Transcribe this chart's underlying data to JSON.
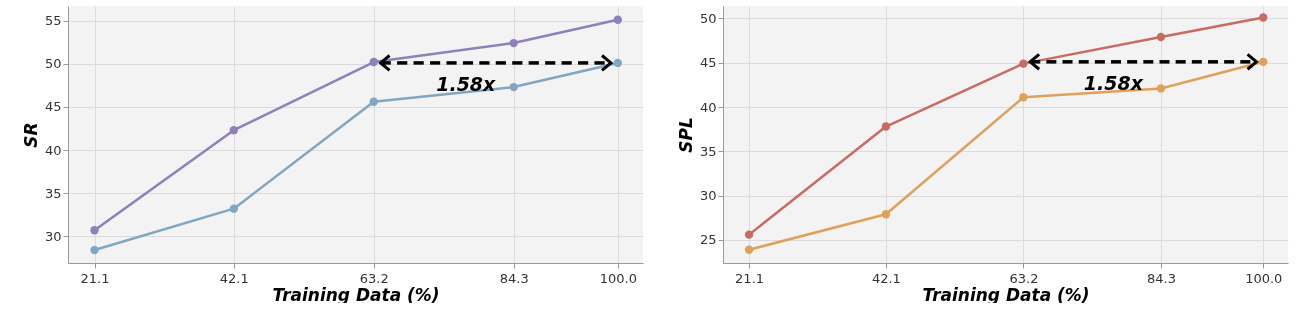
{
  "chart_data": [
    {
      "type": "line",
      "xlabel": "Training Data (%)",
      "ylabel": "SR",
      "x": [
        21.1,
        42.1,
        63.2,
        84.3,
        100.0
      ],
      "series": [
        {
          "color": "#8f7fba",
          "values": [
            30.7,
            42.3,
            50.2,
            52.4,
            55.1
          ]
        },
        {
          "color": "#80a6c2",
          "values": [
            28.4,
            33.2,
            45.6,
            47.3,
            50.1
          ]
        }
      ],
      "xlim": [
        17.1,
        103.8
      ],
      "xticks": [
        21.1,
        42.1,
        63.2,
        84.3,
        {
          "value": 100,
          "label": "100.0"
        }
      ],
      "ylim": [
        26.9,
        56.7
      ],
      "yticks": [
        30,
        35,
        40,
        45,
        50,
        55
      ],
      "grid": true,
      "marker": "circle",
      "line_style": "solid",
      "annotations": [
        "1.58x"
      ]
    },
    {
      "type": "line",
      "xlabel": "Training Data (%)",
      "ylabel": "SPL",
      "x": [
        21.1,
        42.1,
        63.2,
        84.3,
        100.0
      ],
      "series": [
        {
          "color": "#c86b62",
          "values": [
            25.6,
            37.8,
            44.9,
            47.9,
            50.1
          ]
        },
        {
          "color": "#dda15a",
          "values": [
            23.9,
            27.9,
            41.1,
            42.1,
            45.1
          ]
        }
      ],
      "xlim": [
        17.1,
        103.8
      ],
      "xticks": [
        21.1,
        42.1,
        63.2,
        84.3,
        {
          "value": 100,
          "label": "100.0"
        }
      ],
      "ylim": [
        22.4,
        51.4
      ],
      "yticks": [
        25,
        30,
        35,
        40,
        45,
        50
      ],
      "grid": true,
      "marker": "circle",
      "line_style": "solid",
      "annotations": [
        "1.58x"
      ]
    }
  ]
}
